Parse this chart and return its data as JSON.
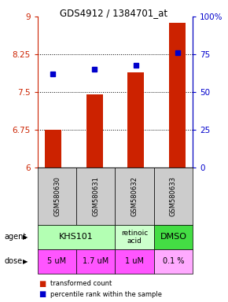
{
  "title": "GDS4912 / 1384701_at",
  "samples": [
    "GSM580630",
    "GSM580631",
    "GSM580632",
    "GSM580633"
  ],
  "bar_values": [
    6.75,
    7.45,
    7.9,
    8.87
  ],
  "dot_values": [
    62,
    65,
    68,
    76
  ],
  "bar_color": "#cc2200",
  "dot_color": "#0000cc",
  "ylim_left": [
    6,
    9
  ],
  "ylim_right": [
    0,
    100
  ],
  "yticks_left": [
    6,
    6.75,
    7.5,
    8.25,
    9
  ],
  "yticks_right": [
    0,
    25,
    50,
    75,
    100
  ],
  "ytick_labels_left": [
    "6",
    "6.75",
    "7.5",
    "8.25",
    "9"
  ],
  "ytick_labels_right": [
    "0",
    "25",
    "50",
    "75",
    "100%"
  ],
  "hlines": [
    6.75,
    7.5,
    8.25
  ],
  "agent_groups": [
    {
      "cols": [
        0,
        1
      ],
      "label": "KHS101",
      "color": "#b3ffb3",
      "fontsize": 8
    },
    {
      "cols": [
        2
      ],
      "label": "retinoic\nacid",
      "color": "#ccffcc",
      "fontsize": 6.5
    },
    {
      "cols": [
        3
      ],
      "label": "DMSO",
      "color": "#44dd44",
      "fontsize": 8
    }
  ],
  "dose_labels": [
    "5 uM",
    "1.7 uM",
    "1 uM",
    "0.1 %"
  ],
  "dose_colors": [
    "#ff55ff",
    "#ff55ff",
    "#ff55ff",
    "#ffaaff"
  ],
  "sample_bg_color": "#cccccc",
  "legend_bar_label": "transformed count",
  "legend_dot_label": "percentile rank within the sample",
  "agent_row_label": "agent",
  "dose_row_label": "dose"
}
